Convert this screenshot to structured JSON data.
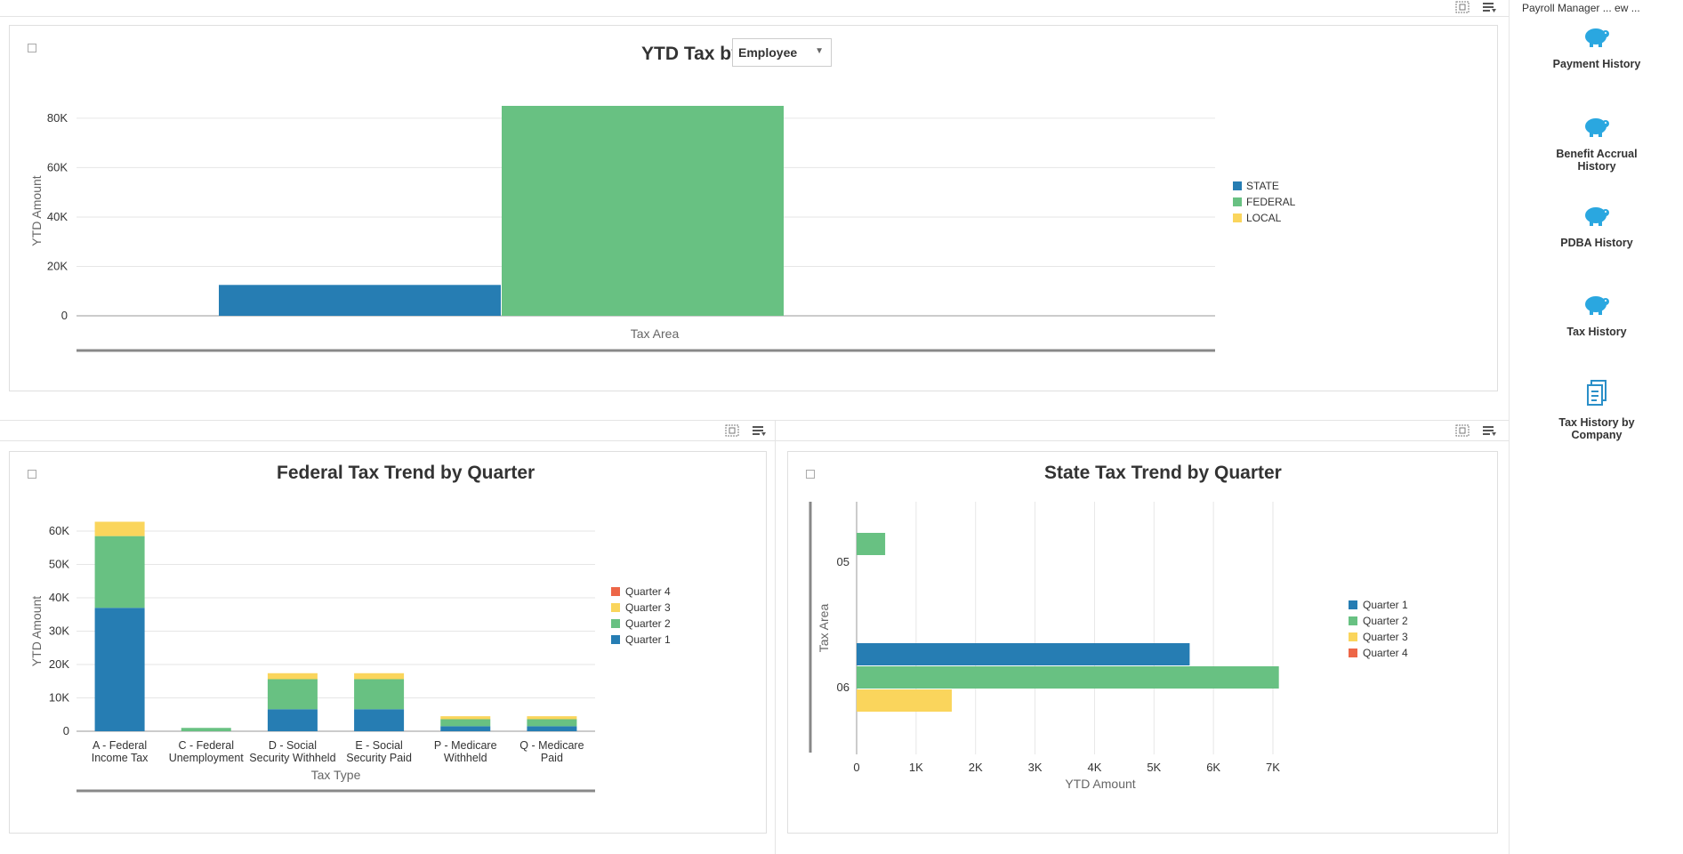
{
  "top_chart": {
    "title_prefix": "YTD Tax by",
    "dropdown_value": "Employee",
    "ylabel": "YTD Amount",
    "xlabel": "Tax Area"
  },
  "federal_chart": {
    "title": "Federal Tax Trend by Quarter",
    "ylabel": "YTD Amount",
    "xlabel": "Tax Type"
  },
  "state_chart": {
    "title": "State Tax Trend by Quarter",
    "ylabel": "Tax Area",
    "xlabel": "YTD Amount"
  },
  "sidebar": {
    "header": "Payroll Manager ... ew ...",
    "items": [
      {
        "label_line1": "Payment History",
        "label_line2": "",
        "icon": "piggy-bank-icon"
      },
      {
        "label_line1": "Benefit Accrual",
        "label_line2": "History",
        "icon": "piggy-bank-icon"
      },
      {
        "label_line1": "PDBA History",
        "label_line2": "",
        "icon": "piggy-bank-icon"
      },
      {
        "label_line1": "Tax History",
        "label_line2": "",
        "icon": "piggy-bank-icon"
      },
      {
        "label_line1": "Tax History by",
        "label_line2": "Company",
        "icon": "document-icon"
      }
    ]
  },
  "colors": {
    "q1": "#267db3",
    "q2": "#68c182",
    "q3": "#fad55c",
    "q4": "#ed6647"
  },
  "chart_data": [
    {
      "type": "bar",
      "title": "YTD Tax by Employee",
      "xlabel": "Tax Area",
      "ylabel": "YTD Amount",
      "ylim": [
        0,
        85000
      ],
      "yticks": [
        "0",
        "20K",
        "40K",
        "60K",
        "80K"
      ],
      "ytick_values": [
        0,
        20000,
        40000,
        60000,
        80000
      ],
      "series": [
        {
          "name": "STATE",
          "color": "#267db3",
          "values": [
            12500
          ]
        },
        {
          "name": "FEDERAL",
          "color": "#68c182",
          "values": [
            85000
          ]
        },
        {
          "name": "LOCAL",
          "color": "#fad55c",
          "values": [
            0
          ]
        }
      ],
      "legend": "right",
      "grid": true
    },
    {
      "type": "bar",
      "stacked": true,
      "title": "Federal Tax Trend by Quarter",
      "xlabel": "Tax Type",
      "ylabel": "YTD Amount",
      "ylim": [
        0,
        60000
      ],
      "yticks": [
        "0",
        "10K",
        "20K",
        "30K",
        "40K",
        "50K",
        "60K"
      ],
      "ytick_values": [
        0,
        10000,
        20000,
        30000,
        40000,
        50000,
        60000
      ],
      "categories": [
        [
          "A - Federal",
          "Income Tax"
        ],
        [
          "C - Federal",
          "Unemployment"
        ],
        [
          "D - Social",
          "Security Withheld"
        ],
        [
          "E - Social",
          "Security Paid"
        ],
        [
          "P - Medicare",
          "Withheld"
        ],
        [
          "Q - Medicare",
          "Paid"
        ]
      ],
      "series": [
        {
          "name": "Quarter 1",
          "color": "#267db3",
          "values": [
            37000,
            0,
            6600,
            6600,
            1500,
            1500
          ]
        },
        {
          "name": "Quarter 2",
          "color": "#68c182",
          "values": [
            21500,
            1000,
            9000,
            9000,
            2100,
            2100
          ]
        },
        {
          "name": "Quarter 3",
          "color": "#fad55c",
          "values": [
            4300,
            0,
            1800,
            1800,
            900,
            900
          ]
        },
        {
          "name": "Quarter 4",
          "color": "#ed6647",
          "values": [
            0,
            0,
            0,
            0,
            0,
            0
          ]
        }
      ],
      "legend": "right",
      "grid": true
    },
    {
      "type": "bar",
      "orientation": "horizontal",
      "title": "State Tax Trend by Quarter",
      "xlabel": "YTD Amount",
      "ylabel": "Tax Area",
      "xlim": [
        0,
        7000
      ],
      "xticks": [
        "0",
        "1K",
        "2K",
        "3K",
        "4K",
        "5K",
        "6K",
        "7K"
      ],
      "xtick_values": [
        0,
        1000,
        2000,
        3000,
        4000,
        5000,
        6000,
        7000
      ],
      "categories": [
        "05",
        "06"
      ],
      "series": [
        {
          "name": "Quarter 1",
          "color": "#267db3",
          "values": [
            0,
            5600
          ]
        },
        {
          "name": "Quarter 2",
          "color": "#68c182",
          "values": [
            480,
            7100
          ]
        },
        {
          "name": "Quarter 3",
          "color": "#fad55c",
          "values": [
            0,
            1600
          ]
        },
        {
          "name": "Quarter 4",
          "color": "#ed6647",
          "values": [
            0,
            0
          ]
        }
      ],
      "legend": "right",
      "grid": true
    }
  ]
}
